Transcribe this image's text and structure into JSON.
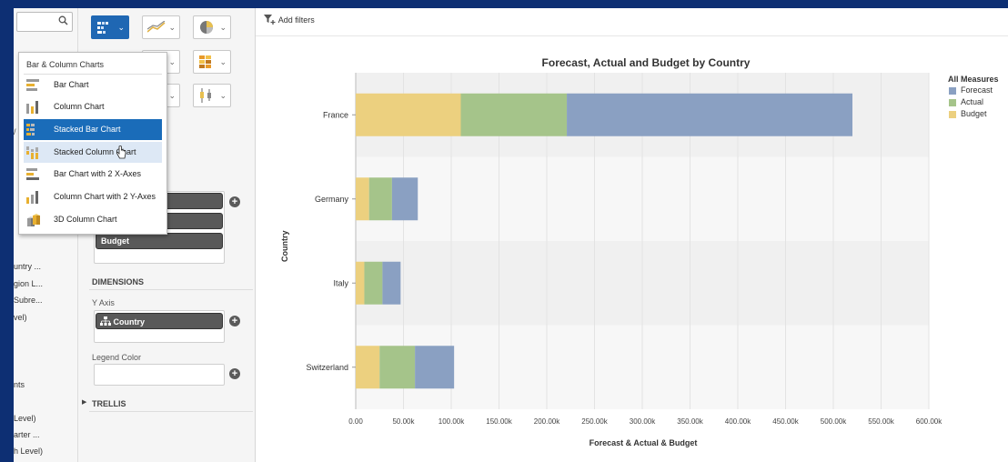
{
  "left_panel": {
    "items": [
      "untry ...",
      "gion L...",
      "Subre...",
      "vel)",
      "nts",
      "Level)",
      "arter ...",
      "h Level)"
    ]
  },
  "toolbar": {
    "buttons": [
      {
        "icon": "stacked-bar-icon",
        "selected": true
      },
      {
        "icon": "line-chart-icon",
        "selected": false
      },
      {
        "icon": "pie-chart-icon",
        "selected": false
      },
      {
        "icon": "bar-chart-icon",
        "selected": false
      },
      {
        "icon": "heatmap-icon",
        "selected": false
      },
      {
        "icon": "box-plot-icon",
        "selected": false
      }
    ]
  },
  "chart_type_menu": {
    "header": "Bar & Column Charts",
    "items": [
      {
        "label": "Bar Chart",
        "state": "normal"
      },
      {
        "label": "Column Chart",
        "state": "normal"
      },
      {
        "label": "Stacked Bar Chart",
        "state": "selected"
      },
      {
        "label": "Stacked Column Chart",
        "state": "hover"
      },
      {
        "label": "Bar Chart with 2 X-Axes",
        "state": "normal"
      },
      {
        "label": "Column Chart with 2 Y-Axes",
        "state": "normal"
      },
      {
        "label": "3D Column Chart",
        "state": "normal"
      }
    ]
  },
  "measures": {
    "budget_pill": "Budget"
  },
  "dimensions": {
    "title": "DIMENSIONS",
    "y_axis_label": "Y Axis",
    "y_axis_pill": "Country",
    "legend_color_label": "Legend Color"
  },
  "trellis": {
    "title": "TRELLIS"
  },
  "filter_bar": {
    "add_filters_label": "Add filters"
  },
  "colors": {
    "forecast": "#8aa0c2",
    "actual": "#a5c48a",
    "budget": "#ecd07f",
    "accent": "#1a6cb9"
  },
  "chart_data": {
    "type": "bar",
    "orientation": "horizontal",
    "stacked": true,
    "title": "Forecast, Actual and Budget by Country",
    "xlabel": "Forecast & Actual & Budget",
    "ylabel": "Country",
    "legend_title": "All Measures",
    "categories": [
      "France",
      "Germany",
      "Italy",
      "Switzerland"
    ],
    "series": [
      {
        "name": "Budget",
        "values": [
          110000,
          14000,
          9000,
          25000
        ]
      },
      {
        "name": "Actual",
        "values": [
          111000,
          24000,
          19000,
          37000
        ]
      },
      {
        "name": "Forecast",
        "values": [
          299000,
          27000,
          19000,
          41000
        ]
      }
    ],
    "legend_order": [
      "Forecast",
      "Actual",
      "Budget"
    ],
    "xlim": [
      0,
      600000
    ],
    "xticks": [
      "0.00",
      "50.00k",
      "100.00k",
      "150.00k",
      "200.00k",
      "250.00k",
      "300.00k",
      "350.00k",
      "400.00k",
      "450.00k",
      "500.00k",
      "550.00k",
      "600.00k"
    ],
    "grid": true,
    "legend_position": "right"
  }
}
